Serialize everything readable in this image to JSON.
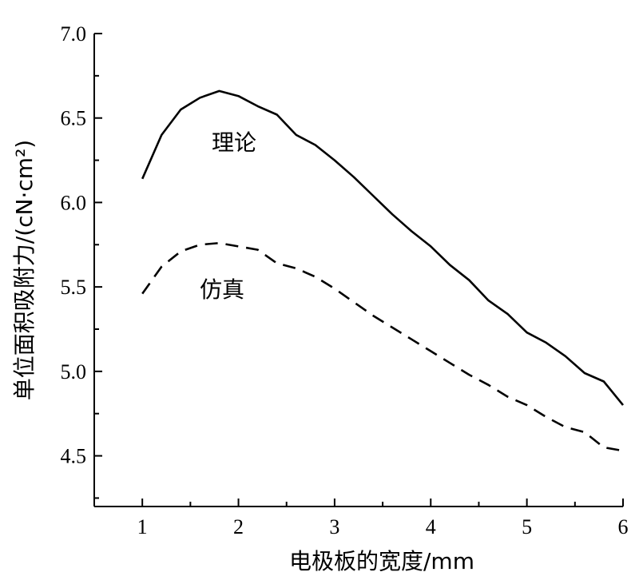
{
  "chart_data": {
    "type": "line",
    "xlabel": "电极板的宽度/mm",
    "ylabel": "单位面积吸附力/(cN·cm²)",
    "xlim": [
      0.5,
      6
    ],
    "ylim": [
      4.2,
      7.0
    ],
    "x_ticks": [
      1,
      2,
      3,
      4,
      5,
      6
    ],
    "y_ticks": [
      4.5,
      5.0,
      5.5,
      6.0,
      6.5,
      7.0
    ],
    "x_tick_labels": [
      "1",
      "2",
      "3",
      "4",
      "5",
      "6"
    ],
    "y_tick_labels": [
      "4.5",
      "5.0",
      "5.5",
      "6.0",
      "6.5",
      "7.0"
    ],
    "grid": false,
    "series": [
      {
        "name": "理论",
        "style": "solid",
        "x": [
          1.0,
          1.2,
          1.4,
          1.6,
          1.8,
          2.0,
          2.2,
          2.4,
          2.6,
          2.8,
          3.0,
          3.2,
          3.4,
          3.6,
          3.8,
          4.0,
          4.2,
          4.4,
          4.6,
          4.8,
          5.0,
          5.2,
          5.4,
          5.6,
          5.8,
          6.0
        ],
        "y": [
          6.14,
          6.4,
          6.55,
          6.62,
          6.66,
          6.63,
          6.57,
          6.52,
          6.4,
          6.34,
          6.25,
          6.15,
          6.04,
          5.93,
          5.83,
          5.74,
          5.63,
          5.54,
          5.42,
          5.34,
          5.23,
          5.17,
          5.09,
          4.99,
          4.94,
          4.8
        ]
      },
      {
        "name": "仿真",
        "style": "dashed",
        "x": [
          1.0,
          1.2,
          1.4,
          1.6,
          1.8,
          2.0,
          2.2,
          2.4,
          2.6,
          2.8,
          3.0,
          3.2,
          3.4,
          3.6,
          3.8,
          4.0,
          4.2,
          4.4,
          4.6,
          4.8,
          5.0,
          5.2,
          5.4,
          5.6,
          5.8,
          6.0
        ],
        "y": [
          5.46,
          5.62,
          5.71,
          5.75,
          5.76,
          5.74,
          5.72,
          5.64,
          5.61,
          5.56,
          5.49,
          5.41,
          5.33,
          5.26,
          5.19,
          5.12,
          5.05,
          4.98,
          4.92,
          4.85,
          4.8,
          4.73,
          4.67,
          4.64,
          4.55,
          4.53
        ]
      }
    ]
  }
}
